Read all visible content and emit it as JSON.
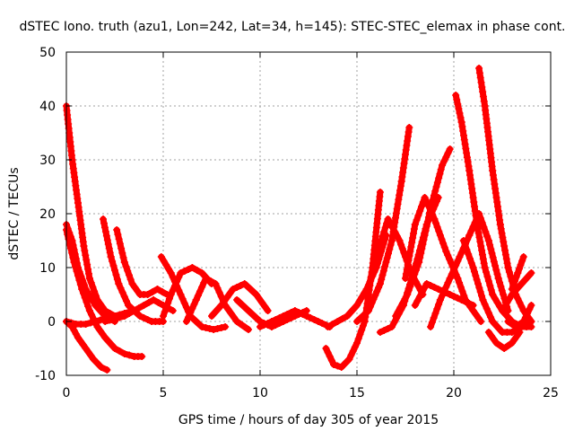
{
  "chart_data": {
    "type": "line",
    "title": "dSTEC Iono. truth (azu1, Lon=242, Lat=34, h=145): STEC-STEC_elemax in phase cont.",
    "xlabel": "GPS time / hours of day 305 of year 2015",
    "ylabel": "dSTEC  / TECUs",
    "xlim": [
      0,
      25
    ],
    "ylim": [
      -10,
      50
    ],
    "x_ticks": [
      "0",
      "5",
      "10",
      "15",
      "20",
      "25"
    ],
    "y_ticks": [
      "-10",
      "0",
      "10",
      "20",
      "30",
      "40",
      "50"
    ],
    "grid": true,
    "marker": "+",
    "series_color": "#ff0000",
    "series": [
      {
        "x": [
          0,
          0.3,
          0.6,
          0.9,
          1.2,
          1.6,
          2.0,
          2.5,
          3.0
        ],
        "y": [
          40,
          30,
          22,
          14,
          8,
          4,
          2,
          1,
          1
        ]
      },
      {
        "x": [
          0,
          0.4,
          0.8,
          1.2,
          1.6,
          2.0,
          2.5,
          3.0,
          3.5,
          3.9
        ],
        "y": [
          17,
          11,
          6,
          2,
          -1,
          -3,
          -5,
          -6,
          -6.5,
          -6.5
        ]
      },
      {
        "x": [
          0,
          0.3,
          0.6,
          1.0,
          1.4,
          1.8,
          2.1
        ],
        "y": [
          0,
          -1,
          -3,
          -5,
          -7,
          -8.5,
          -9
        ]
      },
      {
        "x": [
          0,
          0.3,
          0.6,
          1.0,
          1.5,
          2.0,
          2.5
        ],
        "y": [
          18,
          15,
          10,
          6,
          3,
          1,
          0
        ]
      },
      {
        "x": [
          0,
          0.5,
          1.0,
          1.5,
          2.0,
          2.5,
          3.0,
          3.5
        ],
        "y": [
          0,
          -0.5,
          -0.5,
          0,
          0.5,
          1,
          1.5,
          2
        ]
      },
      {
        "x": [
          1.9,
          2.3,
          2.7,
          3.2,
          3.8,
          4.4,
          5.0
        ],
        "y": [
          19,
          12,
          7,
          3,
          1,
          0,
          0
        ]
      },
      {
        "x": [
          2.6,
          3.0,
          3.4,
          3.8,
          4.2,
          4.7,
          5.2
        ],
        "y": [
          17,
          11,
          7,
          5,
          5,
          6,
          5
        ]
      },
      {
        "x": [
          2.0,
          2.5,
          3.0,
          3.5,
          4.0,
          4.5,
          5.0,
          5.5
        ],
        "y": [
          0,
          0.5,
          1,
          2,
          3,
          4,
          3,
          2
        ]
      },
      {
        "x": [
          4.9,
          5.4,
          5.9,
          6.4,
          7.0,
          7.6,
          8.2
        ],
        "y": [
          12,
          9,
          5,
          1,
          -1,
          -1.5,
          -1
        ]
      },
      {
        "x": [
          5.0,
          5.4,
          5.9,
          6.5,
          7.0,
          7.5
        ],
        "y": [
          1,
          5,
          9,
          10,
          9,
          7
        ]
      },
      {
        "x": [
          6.2,
          6.7,
          7.2,
          7.7,
          8.2,
          8.8,
          9.4
        ],
        "y": [
          0,
          4,
          8,
          7,
          3,
          0,
          -1.5
        ]
      },
      {
        "x": [
          7.5,
          8.0,
          8.6,
          9.2,
          9.8,
          10.4
        ],
        "y": [
          1,
          3,
          6,
          7,
          5,
          2
        ]
      },
      {
        "x": [
          8.8,
          9.4,
          10.0,
          10.6,
          11.2,
          11.8,
          12.4
        ],
        "y": [
          4,
          2,
          0,
          -1,
          0,
          1,
          2
        ]
      },
      {
        "x": [
          10.0,
          10.6,
          11.2,
          11.8,
          12.4,
          13.0,
          13.6
        ],
        "y": [
          -1,
          0,
          1,
          2,
          1,
          0,
          -1
        ]
      },
      {
        "x": [
          13.4,
          13.8,
          14.2,
          14.6,
          15.0,
          15.4,
          15.8,
          16.2
        ],
        "y": [
          -5,
          -8,
          -8.5,
          -7,
          -4,
          0,
          10,
          24
        ]
      },
      {
        "x": [
          13.5,
          14.0,
          14.5,
          15.0,
          15.5,
          16.0,
          16.5
        ],
        "y": [
          -1,
          0,
          1,
          3,
          6,
          10,
          16
        ]
      },
      {
        "x": [
          15.0,
          15.6,
          16.2,
          16.8,
          17.3,
          17.7
        ],
        "y": [
          0,
          2,
          7,
          15,
          26,
          36
        ]
      },
      {
        "x": [
          15.5,
          16.0,
          16.6,
          17.2,
          17.8,
          18.4
        ],
        "y": [
          5,
          12,
          19,
          15,
          9,
          5
        ]
      },
      {
        "x": [
          16.2,
          16.8,
          17.4,
          18.0,
          18.6,
          19.2
        ],
        "y": [
          -2,
          -1,
          3,
          10,
          18,
          23
        ]
      },
      {
        "x": [
          17.0,
          17.6,
          18.2,
          18.8,
          19.4,
          19.8
        ],
        "y": [
          1,
          5,
          11,
          21,
          29,
          32
        ]
      },
      {
        "x": [
          17.5,
          18.0,
          18.5,
          19.0,
          19.6,
          20.2,
          20.6,
          21.0,
          21.4
        ],
        "y": [
          8,
          18,
          23,
          19,
          13,
          8,
          4,
          2,
          0
        ]
      },
      {
        "x": [
          18.0,
          18.6,
          19.2,
          19.8,
          20.4,
          21.0
        ],
        "y": [
          3,
          7,
          6,
          5,
          4,
          3
        ]
      },
      {
        "x": [
          18.8,
          19.3,
          19.8,
          20.3,
          20.8,
          21.3,
          21.8,
          22.3,
          22.8
        ],
        "y": [
          -1,
          4,
          8,
          12,
          16,
          20,
          15,
          8,
          2
        ]
      },
      {
        "x": [
          20.1,
          20.4,
          20.8,
          21.2,
          21.6,
          22.0,
          22.5,
          23.0,
          23.5,
          24.0
        ],
        "y": [
          42,
          37,
          28,
          18,
          10,
          5,
          2,
          0,
          -1,
          -1
        ]
      },
      {
        "x": [
          21.3,
          21.6,
          22.0,
          22.4,
          22.8,
          23.2,
          23.6,
          24.0
        ],
        "y": [
          47,
          40,
          28,
          18,
          10,
          5,
          2,
          0
        ]
      },
      {
        "x": [
          20.5,
          21.0,
          21.5,
          22.0,
          22.5,
          23.0,
          23.5,
          24.0
        ],
        "y": [
          15,
          10,
          4,
          0,
          -2,
          -2,
          -1,
          0
        ]
      },
      {
        "x": [
          21.8,
          22.2,
          22.6,
          23.0,
          23.4
        ],
        "y": [
          -2,
          -4,
          -5,
          -4,
          -2
        ]
      },
      {
        "x": [
          22.5,
          23.0,
          23.5,
          24.0
        ],
        "y": [
          2,
          5,
          7,
          9
        ]
      },
      {
        "x": [
          23.0,
          23.3,
          23.6
        ],
        "y": [
          6,
          9,
          12
        ]
      },
      {
        "x": [
          22.8,
          23.2,
          23.6,
          24.0
        ],
        "y": [
          0,
          -1,
          0,
          3
        ]
      }
    ]
  }
}
